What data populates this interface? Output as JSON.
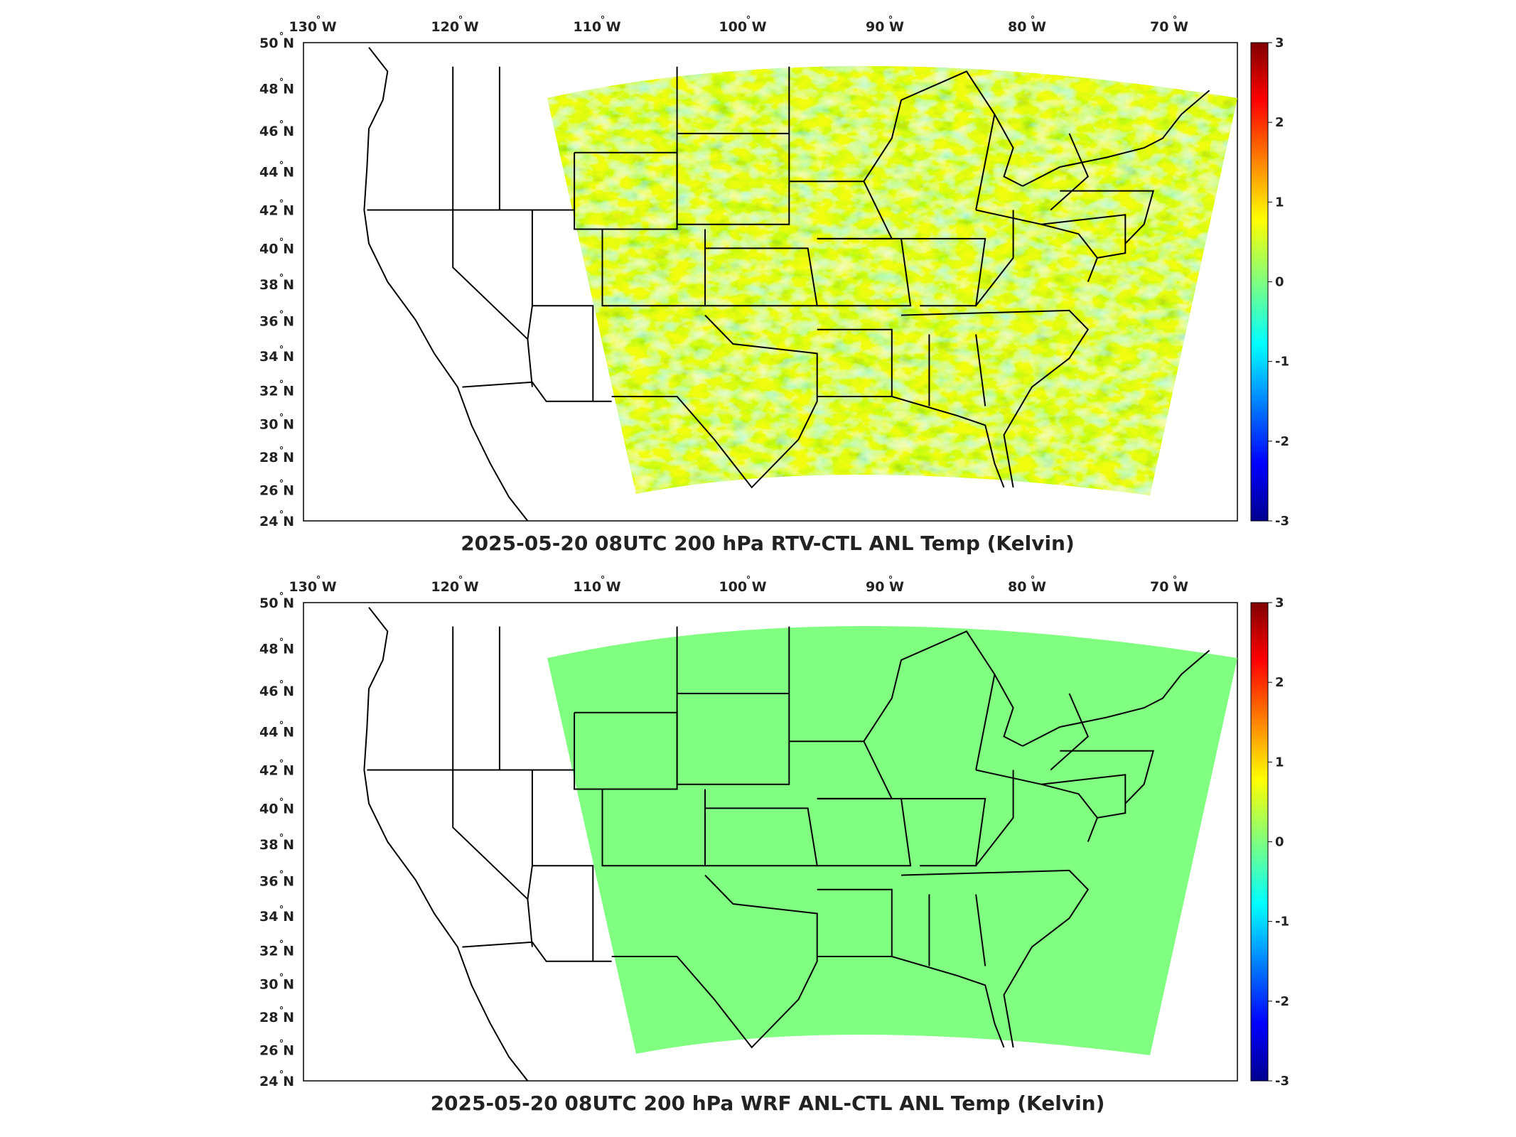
{
  "figure": {
    "lon_ticks": [
      "130",
      "120",
      "110",
      "100",
      "90",
      "80",
      "70"
    ],
    "lon_hemisphere": "W",
    "lat_ticks": [
      "50",
      "48",
      "46",
      "44",
      "42",
      "40",
      "38",
      "36",
      "34",
      "32",
      "30",
      "28",
      "26",
      "24"
    ],
    "lat_hemisphere": "N",
    "degree_symbol": "°",
    "colorbar_ticks": [
      "3",
      "2",
      "1",
      "0",
      "-1",
      "-2",
      "-3"
    ],
    "colorbar_range": [
      -3,
      3
    ],
    "colormap": [
      "#00008f",
      "#0000ff",
      "#00ffff",
      "#7fff7f",
      "#ffff00",
      "#ff0000",
      "#800000"
    ]
  },
  "panels": [
    {
      "title": "2025-05-20 08UTC 200 hPa RTV-CTL ANL Temp (Kelvin)",
      "field_description": "noisy",
      "fill_color": "#a6f06a"
    },
    {
      "title": "2025-05-20 08UTC 200 hPa WRF ANL-CTL ANL Temp (Kelvin)",
      "field_description": "uniform",
      "fill_color": "#80ff80"
    }
  ]
}
